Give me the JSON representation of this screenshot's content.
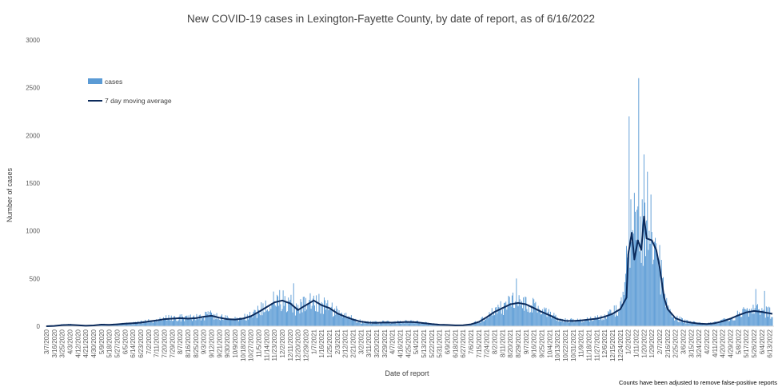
{
  "chart_data": {
    "type": "bar",
    "title": "New COVID-19 cases in Lexington-Fayette County, by date of report, as of 6/16/2022",
    "xlabel": "Date of report",
    "ylabel": "Number of cases",
    "ylim": [
      0,
      3000
    ],
    "yticks": [
      0,
      500,
      1000,
      1500,
      2000,
      2500,
      3000
    ],
    "grid": false,
    "legend_position": "top-left",
    "colors": {
      "cases": "#5b9bd5",
      "moving_average": "#0b2a5b"
    },
    "x_tick_labels": [
      "3/7/2020",
      "3/16/2020",
      "3/25/2020",
      "4/3/2020",
      "4/12/2020",
      "4/21/2020",
      "4/30/2020",
      "5/9/2020",
      "5/18/2020",
      "5/27/2020",
      "6/5/2020",
      "6/14/2020",
      "6/23/2020",
      "7/2/2020",
      "7/11/2020",
      "7/20/2020",
      "7/29/2020",
      "8/7/2020",
      "8/16/2020",
      "8/25/2020",
      "9/3/2020",
      "9/12/2020",
      "9/21/2020",
      "9/30/2020",
      "10/9/2020",
      "10/18/2020",
      "10/27/2020",
      "11/5/2020",
      "11/14/2020",
      "11/23/2020",
      "12/2/2020",
      "12/11/2020",
      "12/20/2020",
      "12/29/2020",
      "1/7/2021",
      "1/16/2021",
      "1/25/2021",
      "2/3/2021",
      "2/12/2021",
      "2/21/2021",
      "3/2/2021",
      "3/11/2021",
      "3/20/2021",
      "3/29/2021",
      "4/7/2021",
      "4/16/2021",
      "4/25/2021",
      "5/4/2021",
      "5/13/2021",
      "5/22/2021",
      "5/31/2021",
      "6/9/2021",
      "6/18/2021",
      "6/27/2021",
      "7/6/2021",
      "7/15/2021",
      "7/24/2021",
      "8/2/2021",
      "8/11/2021",
      "8/20/2021",
      "8/29/2021",
      "9/7/2021",
      "9/16/2021",
      "9/25/2021",
      "10/4/2021",
      "10/13/2021",
      "10/22/2021",
      "10/31/2021",
      "11/9/2021",
      "11/18/2021",
      "11/27/2021",
      "12/6/2021",
      "12/15/2021",
      "12/24/2021",
      "1/2/2022",
      "1/11/2022",
      "1/20/2022",
      "1/29/2022",
      "2/7/2022",
      "2/16/2022",
      "2/25/2022",
      "3/6/2022",
      "3/15/2022",
      "3/24/2022",
      "4/2/2022",
      "4/11/2022",
      "4/20/2022",
      "4/29/2022",
      "5/8/2022",
      "5/17/2022",
      "5/26/2022",
      "6/4/2022",
      "6/13/2022"
    ],
    "series": [
      {
        "name": "cases",
        "type": "bar",
        "anchors": [
          [
            "3/7/2020",
            0
          ],
          [
            "3/16/2020",
            5
          ],
          [
            "3/25/2020",
            15
          ],
          [
            "4/3/2020",
            18
          ],
          [
            "4/12/2020",
            12
          ],
          [
            "4/21/2020",
            6
          ],
          [
            "4/30/2020",
            10
          ],
          [
            "5/9/2020",
            20
          ],
          [
            "5/18/2020",
            15
          ],
          [
            "5/27/2020",
            22
          ],
          [
            "6/5/2020",
            30
          ],
          [
            "6/14/2020",
            35
          ],
          [
            "6/23/2020",
            40
          ],
          [
            "7/2/2020",
            55
          ],
          [
            "7/11/2020",
            65
          ],
          [
            "7/20/2020",
            80
          ],
          [
            "7/29/2020",
            85
          ],
          [
            "8/7/2020",
            90
          ],
          [
            "8/16/2020",
            85
          ],
          [
            "8/25/2020",
            90
          ],
          [
            "9/3/2020",
            105
          ],
          [
            "9/12/2020",
            120
          ],
          [
            "9/21/2020",
            95
          ],
          [
            "9/30/2020",
            80
          ],
          [
            "10/9/2020",
            75
          ],
          [
            "10/18/2020",
            85
          ],
          [
            "10/27/2020",
            110
          ],
          [
            "11/5/2020",
            160
          ],
          [
            "11/14/2020",
            210
          ],
          [
            "11/23/2020",
            260
          ],
          [
            "12/2/2020",
            280
          ],
          [
            "12/11/2020",
            250
          ],
          [
            "12/20/2020",
            180
          ],
          [
            "12/29/2020",
            230
          ],
          [
            "1/7/2021",
            290
          ],
          [
            "1/16/2021",
            230
          ],
          [
            "1/25/2021",
            200
          ],
          [
            "2/3/2021",
            140
          ],
          [
            "2/12/2021",
            105
          ],
          [
            "2/21/2021",
            75
          ],
          [
            "3/2/2021",
            50
          ],
          [
            "3/11/2021",
            40
          ],
          [
            "3/20/2021",
            38
          ],
          [
            "3/29/2021",
            42
          ],
          [
            "4/7/2021",
            40
          ],
          [
            "4/16/2021",
            45
          ],
          [
            "4/25/2021",
            48
          ],
          [
            "5/4/2021",
            45
          ],
          [
            "5/13/2021",
            35
          ],
          [
            "5/22/2021",
            25
          ],
          [
            "5/31/2021",
            18
          ],
          [
            "6/9/2021",
            15
          ],
          [
            "6/18/2021",
            10
          ],
          [
            "6/27/2021",
            12
          ],
          [
            "7/6/2021",
            22
          ],
          [
            "7/15/2021",
            50
          ],
          [
            "7/24/2021",
            100
          ],
          [
            "8/2/2021",
            160
          ],
          [
            "8/11/2021",
            200
          ],
          [
            "8/20/2021",
            240
          ],
          [
            "8/29/2021",
            255
          ],
          [
            "9/7/2021",
            240
          ],
          [
            "9/16/2021",
            200
          ],
          [
            "9/25/2021",
            160
          ],
          [
            "10/4/2021",
            120
          ],
          [
            "10/13/2021",
            80
          ],
          [
            "10/22/2021",
            60
          ],
          [
            "10/31/2021",
            58
          ],
          [
            "11/9/2021",
            62
          ],
          [
            "11/18/2021",
            75
          ],
          [
            "11/27/2021",
            85
          ],
          [
            "12/6/2021",
            110
          ],
          [
            "12/15/2021",
            140
          ],
          [
            "12/24/2021",
            200
          ],
          [
            "1/2/2022",
            900
          ],
          [
            "1/11/2022",
            1000
          ],
          [
            "1/20/2022",
            1050
          ],
          [
            "1/29/2022",
            900
          ],
          [
            "2/7/2022",
            650
          ],
          [
            "2/16/2022",
            200
          ],
          [
            "2/25/2022",
            90
          ],
          [
            "3/6/2022",
            55
          ],
          [
            "3/15/2022",
            40
          ],
          [
            "3/24/2022",
            30
          ],
          [
            "4/2/2022",
            25
          ],
          [
            "4/11/2022",
            35
          ],
          [
            "4/20/2022",
            55
          ],
          [
            "4/29/2022",
            85
          ],
          [
            "5/8/2022",
            120
          ],
          [
            "5/17/2022",
            150
          ],
          [
            "5/26/2022",
            165
          ],
          [
            "6/4/2022",
            155
          ],
          [
            "6/13/2022",
            140
          ],
          [
            "6/16/2022",
            135
          ]
        ],
        "notable_peaks": [
          [
            "12/15/2020",
            450
          ],
          [
            "1/7/2021",
            320
          ],
          [
            "8/27/2021",
            500
          ],
          [
            "12/30/2021",
            550
          ],
          [
            "1/3/2022",
            2200
          ],
          [
            "1/5/2022",
            1330
          ],
          [
            "1/10/2022",
            1200
          ],
          [
            "1/12/2022",
            1220
          ],
          [
            "1/14/2022",
            2600
          ],
          [
            "1/18/2022",
            1330
          ],
          [
            "1/20/2022",
            1800
          ],
          [
            "1/24/2022",
            1620
          ],
          [
            "1/26/2022",
            1000
          ],
          [
            "1/28/2022",
            1380
          ],
          [
            "5/28/2022",
            390
          ],
          [
            "6/7/2022",
            370
          ]
        ]
      },
      {
        "name": "7 day moving average",
        "type": "line",
        "anchors": [
          [
            "3/7/2020",
            0
          ],
          [
            "3/16/2020",
            3
          ],
          [
            "3/25/2020",
            12
          ],
          [
            "4/3/2020",
            15
          ],
          [
            "4/12/2020",
            10
          ],
          [
            "4/21/2020",
            5
          ],
          [
            "4/30/2020",
            8
          ],
          [
            "5/9/2020",
            17
          ],
          [
            "5/18/2020",
            14
          ],
          [
            "5/27/2020",
            20
          ],
          [
            "6/5/2020",
            27
          ],
          [
            "6/14/2020",
            32
          ],
          [
            "6/23/2020",
            38
          ],
          [
            "7/2/2020",
            50
          ],
          [
            "7/11/2020",
            60
          ],
          [
            "7/20/2020",
            75
          ],
          [
            "7/29/2020",
            80
          ],
          [
            "8/7/2020",
            85
          ],
          [
            "8/16/2020",
            80
          ],
          [
            "8/25/2020",
            85
          ],
          [
            "9/3/2020",
            100
          ],
          [
            "9/12/2020",
            110
          ],
          [
            "9/21/2020",
            90
          ],
          [
            "9/30/2020",
            75
          ],
          [
            "10/9/2020",
            70
          ],
          [
            "10/18/2020",
            80
          ],
          [
            "10/27/2020",
            105
          ],
          [
            "11/5/2020",
            150
          ],
          [
            "11/14/2020",
            200
          ],
          [
            "11/23/2020",
            250
          ],
          [
            "12/2/2020",
            270
          ],
          [
            "12/11/2020",
            240
          ],
          [
            "12/20/2020",
            170
          ],
          [
            "12/29/2020",
            220
          ],
          [
            "1/7/2021",
            270
          ],
          [
            "1/16/2021",
            220
          ],
          [
            "1/25/2021",
            190
          ],
          [
            "2/3/2021",
            135
          ],
          [
            "2/12/2021",
            100
          ],
          [
            "2/21/2021",
            70
          ],
          [
            "3/2/2021",
            48
          ],
          [
            "3/11/2021",
            38
          ],
          [
            "3/20/2021",
            36
          ],
          [
            "3/29/2021",
            40
          ],
          [
            "4/7/2021",
            38
          ],
          [
            "4/16/2021",
            42
          ],
          [
            "4/25/2021",
            45
          ],
          [
            "5/4/2021",
            42
          ],
          [
            "5/13/2021",
            33
          ],
          [
            "5/22/2021",
            23
          ],
          [
            "5/31/2021",
            16
          ],
          [
            "6/9/2021",
            13
          ],
          [
            "6/18/2021",
            9
          ],
          [
            "6/27/2021",
            11
          ],
          [
            "7/6/2021",
            20
          ],
          [
            "7/15/2021",
            45
          ],
          [
            "7/24/2021",
            95
          ],
          [
            "8/2/2021",
            150
          ],
          [
            "8/11/2021",
            190
          ],
          [
            "8/20/2021",
            230
          ],
          [
            "8/29/2021",
            245
          ],
          [
            "9/7/2021",
            230
          ],
          [
            "9/16/2021",
            190
          ],
          [
            "9/25/2021",
            150
          ],
          [
            "10/4/2021",
            115
          ],
          [
            "10/13/2021",
            75
          ],
          [
            "10/22/2021",
            57
          ],
          [
            "10/31/2021",
            55
          ],
          [
            "11/9/2021",
            60
          ],
          [
            "11/18/2021",
            70
          ],
          [
            "11/27/2021",
            80
          ],
          [
            "12/6/2021",
            100
          ],
          [
            "12/15/2021",
            130
          ],
          [
            "12/24/2021",
            180
          ],
          [
            "12/31/2021",
            300
          ],
          [
            "1/2/2022",
            750
          ],
          [
            "1/6/2022",
            980
          ],
          [
            "1/9/2022",
            700
          ],
          [
            "1/13/2022",
            900
          ],
          [
            "1/17/2022",
            800
          ],
          [
            "1/20/2022",
            1150
          ],
          [
            "1/23/2022",
            920
          ],
          [
            "1/29/2022",
            900
          ],
          [
            "2/3/2022",
            800
          ],
          [
            "2/7/2022",
            620
          ],
          [
            "2/12/2022",
            300
          ],
          [
            "2/16/2022",
            180
          ],
          [
            "2/25/2022",
            85
          ],
          [
            "3/6/2022",
            52
          ],
          [
            "3/15/2022",
            38
          ],
          [
            "3/24/2022",
            28
          ],
          [
            "4/2/2022",
            23
          ],
          [
            "4/11/2022",
            32
          ],
          [
            "4/20/2022",
            52
          ],
          [
            "4/29/2022",
            80
          ],
          [
            "5/8/2022",
            115
          ],
          [
            "5/17/2022",
            145
          ],
          [
            "5/26/2022",
            160
          ],
          [
            "6/4/2022",
            150
          ],
          [
            "6/13/2022",
            135
          ],
          [
            "6/16/2022",
            130
          ]
        ]
      }
    ],
    "footnote": "Counts have been adjusted to remove false-positive reports"
  }
}
